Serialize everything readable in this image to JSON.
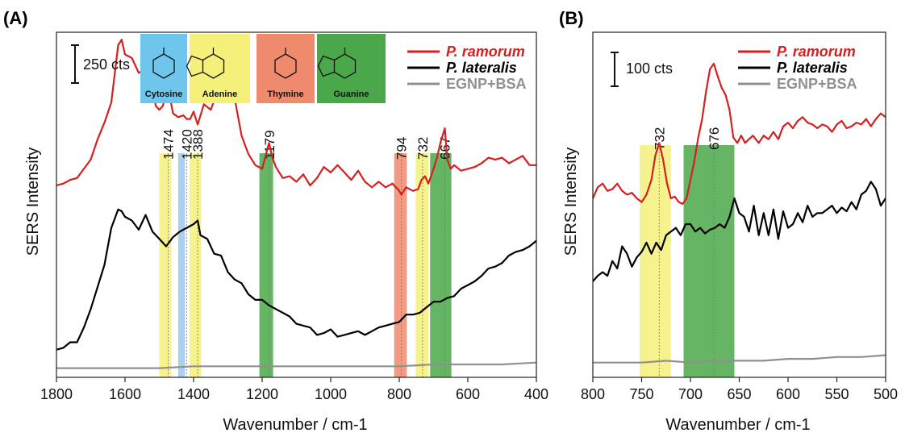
{
  "chart_data": [
    {
      "type": "line",
      "panel_label": "(A)",
      "xlabel": "Wavenumber / cm-1",
      "ylabel": "SERS Intensity",
      "xlim": [
        1800,
        400
      ],
      "x_reversed": true,
      "x_ticks": [
        "1800",
        "1600",
        "1400",
        "1200",
        "1000",
        "800",
        "600",
        "400"
      ],
      "scale_bar": "250 cts",
      "peak_labels": [
        "1474",
        "1420",
        "1388",
        "1179",
        "794",
        "732",
        "667"
      ],
      "bands": [
        {
          "from": 1500,
          "to": 1465,
          "color": "#f4f07a"
        },
        {
          "from": 1445,
          "to": 1425,
          "color": "#9cc8ea"
        },
        {
          "from": 1412,
          "to": 1378,
          "color": "#f4f07a"
        },
        {
          "from": 1208,
          "to": 1168,
          "color": "#4aa84a"
        },
        {
          "from": 815,
          "to": 778,
          "color": "#f08a6c"
        },
        {
          "from": 752,
          "to": 715,
          "color": "#f4f07a"
        },
        {
          "from": 710,
          "to": 648,
          "color": "#4aa84a"
        }
      ],
      "molecules": [
        {
          "name": "Cytosine",
          "color": "#6ec6ec"
        },
        {
          "name": "Adenine",
          "color": "#f4f07a"
        },
        {
          "name": "Thymine",
          "color": "#f08a6c"
        },
        {
          "name": "Guanine",
          "color": "#4aa84a"
        }
      ],
      "series": [
        {
          "name": "P. ramorum",
          "color": "#d42020",
          "x": [
            1800,
            1780,
            1760,
            1740,
            1720,
            1700,
            1680,
            1660,
            1640,
            1620,
            1610,
            1600,
            1580,
            1560,
            1540,
            1520,
            1510,
            1500,
            1490,
            1475,
            1460,
            1445,
            1430,
            1420,
            1410,
            1400,
            1388,
            1370,
            1350,
            1330,
            1320,
            1310,
            1300,
            1290,
            1280,
            1260,
            1240,
            1220,
            1200,
            1190,
            1180,
            1170,
            1160,
            1140,
            1120,
            1100,
            1080,
            1060,
            1040,
            1020,
            1000,
            980,
            960,
            940,
            920,
            900,
            880,
            860,
            840,
            820,
            800,
            794,
            780,
            760,
            745,
            735,
            725,
            715,
            700,
            690,
            680,
            667,
            660,
            650,
            640,
            620,
            600,
            580,
            560,
            540,
            520,
            500,
            480,
            460,
            440,
            420,
            400
          ],
          "y": [
            0.19,
            0.2,
            0.22,
            0.23,
            0.28,
            0.33,
            0.44,
            0.53,
            0.64,
            0.95,
            0.98,
            0.9,
            0.88,
            0.8,
            0.82,
            0.7,
            0.62,
            0.6,
            0.62,
            0.73,
            0.58,
            0.56,
            0.57,
            0.55,
            0.55,
            0.59,
            0.52,
            0.63,
            0.6,
            0.7,
            0.76,
            0.79,
            0.76,
            0.73,
            0.66,
            0.46,
            0.36,
            0.3,
            0.28,
            0.35,
            0.42,
            0.34,
            0.29,
            0.23,
            0.24,
            0.21,
            0.25,
            0.19,
            0.23,
            0.29,
            0.26,
            0.3,
            0.26,
            0.22,
            0.27,
            0.21,
            0.18,
            0.21,
            0.18,
            0.2,
            0.16,
            0.14,
            0.18,
            0.16,
            0.17,
            0.22,
            0.24,
            0.2,
            0.28,
            0.34,
            0.42,
            0.5,
            0.33,
            0.28,
            0.3,
            0.27,
            0.28,
            0.29,
            0.31,
            0.34,
            0.33,
            0.34,
            0.31,
            0.33,
            0.35,
            0.3,
            0.3
          ]
        },
        {
          "name": "P. lateralis",
          "color": "#000000",
          "x": [
            1800,
            1780,
            1760,
            1740,
            1720,
            1700,
            1680,
            1660,
            1640,
            1620,
            1610,
            1600,
            1580,
            1560,
            1540,
            1520,
            1500,
            1480,
            1460,
            1440,
            1420,
            1400,
            1388,
            1380,
            1360,
            1340,
            1320,
            1300,
            1280,
            1260,
            1240,
            1220,
            1200,
            1180,
            1160,
            1140,
            1120,
            1100,
            1080,
            1060,
            1040,
            1020,
            1000,
            980,
            960,
            940,
            920,
            900,
            880,
            860,
            840,
            820,
            800,
            780,
            760,
            740,
            720,
            700,
            680,
            660,
            640,
            620,
            600,
            580,
            560,
            540,
            520,
            500,
            480,
            460,
            440,
            420,
            400
          ],
          "y": [
            -0.7,
            -0.69,
            -0.66,
            -0.66,
            -0.58,
            -0.48,
            -0.36,
            -0.24,
            -0.04,
            0.06,
            0.05,
            0.02,
            0.0,
            -0.05,
            0.03,
            -0.06,
            -0.1,
            -0.14,
            -0.09,
            -0.06,
            -0.04,
            -0.02,
            0.0,
            -0.08,
            -0.1,
            -0.18,
            -0.19,
            -0.28,
            -0.32,
            -0.34,
            -0.4,
            -0.43,
            -0.43,
            -0.46,
            -0.48,
            -0.5,
            -0.52,
            -0.56,
            -0.57,
            -0.58,
            -0.62,
            -0.61,
            -0.59,
            -0.63,
            -0.62,
            -0.61,
            -0.6,
            -0.62,
            -0.6,
            -0.58,
            -0.57,
            -0.56,
            -0.55,
            -0.51,
            -0.51,
            -0.5,
            -0.47,
            -0.44,
            -0.44,
            -0.42,
            -0.41,
            -0.37,
            -0.35,
            -0.33,
            -0.3,
            -0.26,
            -0.25,
            -0.23,
            -0.19,
            -0.17,
            -0.16,
            -0.14,
            -0.11
          ]
        },
        {
          "name": "EGNP+BSA",
          "color": "#909090",
          "x": [
            1800,
            1700,
            1600,
            1500,
            1400,
            1300,
            1200,
            1100,
            1000,
            900,
            800,
            700,
            600,
            500,
            400
          ],
          "y": [
            -0.8,
            -0.8,
            -0.8,
            -0.8,
            -0.79,
            -0.79,
            -0.79,
            -0.79,
            -0.79,
            -0.79,
            -0.79,
            -0.78,
            -0.78,
            -0.78,
            -0.77
          ]
        }
      ]
    },
    {
      "type": "line",
      "panel_label": "(B)",
      "xlabel": "Wavenumber / cm-1",
      "ylabel": "SERS Intensity",
      "xlim": [
        800,
        500
      ],
      "x_reversed": true,
      "x_ticks": [
        "800",
        "750",
        "700",
        "650",
        "600",
        "550",
        "500"
      ],
      "scale_bar": "100 cts",
      "peak_labels": [
        "732",
        "676"
      ],
      "bands": [
        {
          "from": 752,
          "to": 720,
          "color": "#f4f07a"
        },
        {
          "from": 707,
          "to": 655,
          "color": "#4aa84a"
        }
      ],
      "series": [
        {
          "name": "P. ramorum",
          "color": "#d42020",
          "x": [
            800,
            795,
            790,
            785,
            780,
            775,
            770,
            765,
            760,
            755,
            750,
            745,
            740,
            736,
            732,
            728,
            724,
            720,
            716,
            712,
            708,
            704,
            700,
            696,
            692,
            688,
            684,
            680,
            676,
            672,
            668,
            664,
            660,
            656,
            652,
            648,
            644,
            640,
            636,
            630,
            625,
            620,
            615,
            610,
            605,
            600,
            595,
            590,
            585,
            580,
            575,
            570,
            565,
            560,
            555,
            550,
            545,
            540,
            535,
            530,
            525,
            520,
            515,
            510,
            505,
            500
          ],
          "y": [
            0.12,
            0.18,
            0.2,
            0.16,
            0.17,
            0.2,
            0.16,
            0.14,
            0.15,
            0.12,
            0.1,
            0.14,
            0.22,
            0.35,
            0.42,
            0.33,
            0.2,
            0.12,
            0.13,
            0.1,
            0.09,
            0.12,
            0.22,
            0.32,
            0.45,
            0.55,
            0.7,
            0.82,
            0.85,
            0.78,
            0.72,
            0.68,
            0.6,
            0.45,
            0.42,
            0.46,
            0.42,
            0.44,
            0.46,
            0.42,
            0.46,
            0.44,
            0.48,
            0.44,
            0.51,
            0.53,
            0.5,
            0.54,
            0.56,
            0.53,
            0.52,
            0.5,
            0.52,
            0.51,
            0.48,
            0.52,
            0.54,
            0.5,
            0.51,
            0.53,
            0.52,
            0.55,
            0.51,
            0.55,
            0.58,
            0.56
          ]
        },
        {
          "name": "P. lateralis",
          "color": "#000000",
          "x": [
            800,
            795,
            790,
            785,
            780,
            775,
            770,
            765,
            760,
            755,
            750,
            745,
            740,
            735,
            730,
            725,
            720,
            715,
            710,
            705,
            700,
            695,
            690,
            685,
            680,
            675,
            670,
            665,
            660,
            655,
            650,
            645,
            640,
            635,
            630,
            625,
            620,
            615,
            610,
            605,
            600,
            595,
            590,
            585,
            580,
            575,
            570,
            565,
            560,
            555,
            550,
            545,
            540,
            535,
            530,
            525,
            520,
            515,
            510,
            505,
            500
          ],
          "y": [
            -0.33,
            -0.3,
            -0.28,
            -0.3,
            -0.22,
            -0.26,
            -0.14,
            -0.18,
            -0.25,
            -0.2,
            -0.17,
            -0.12,
            -0.18,
            -0.12,
            -0.16,
            -0.08,
            -0.06,
            -0.04,
            -0.08,
            -0.02,
            -0.02,
            -0.06,
            -0.04,
            -0.07,
            -0.05,
            -0.04,
            -0.02,
            -0.04,
            0.02,
            0.12,
            0.04,
            0.02,
            -0.06,
            0.08,
            -0.08,
            0.04,
            -0.08,
            0.06,
            -0.1,
            0.05,
            -0.04,
            -0.02,
            0.04,
            -0.01,
            0.08,
            0.02,
            0.04,
            0.04,
            0.06,
            0.08,
            0.04,
            0.07,
            0.05,
            0.1,
            0.06,
            0.14,
            0.16,
            0.21,
            0.17,
            0.08,
            0.12
          ]
        },
        {
          "name": "EGNP+BSA",
          "color": "#909090",
          "x": [
            800,
            775,
            750,
            725,
            700,
            675,
            650,
            625,
            600,
            575,
            550,
            525,
            500
          ],
          "y": [
            -0.77,
            -0.77,
            -0.77,
            -0.76,
            -0.77,
            -0.76,
            -0.76,
            -0.76,
            -0.75,
            -0.75,
            -0.74,
            -0.74,
            -0.73
          ]
        }
      ]
    }
  ]
}
